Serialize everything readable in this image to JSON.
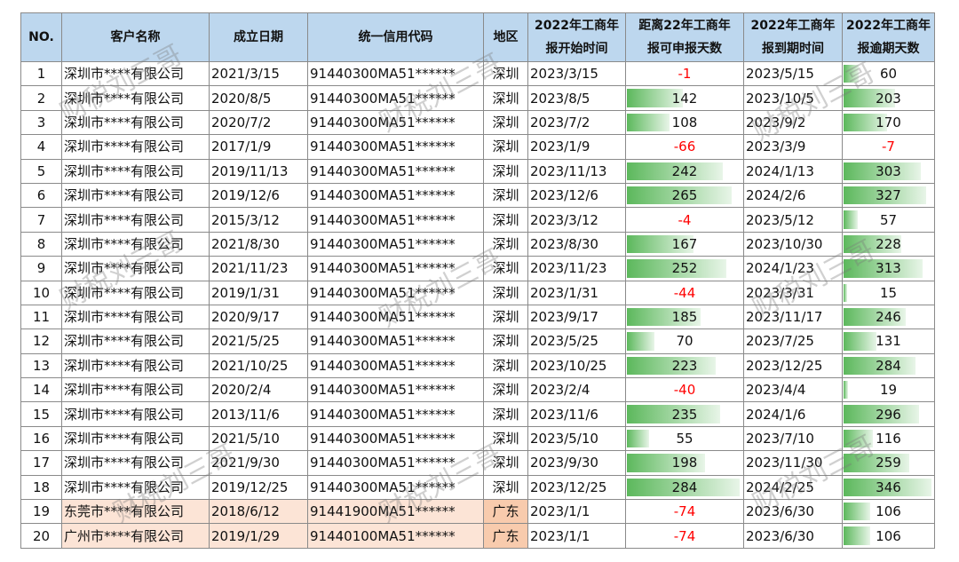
{
  "headers": {
    "no": "NO.",
    "name": "客户名称",
    "date": "成立日期",
    "code": "统一信用代码",
    "region": "地区",
    "start_l1": "2022年工商年",
    "start_l2": "报开始时间",
    "days_l1": "距离22年工商年",
    "days_l2": "报可申报天数",
    "end_l1": "2022年工商年",
    "end_l2": "报到期时间",
    "over_l1": "2022年工商年",
    "over_l2": "报逾期天数"
  },
  "rows": [
    {
      "no": "1",
      "name": "深圳市****有限公司",
      "date": "2021/3/15",
      "code": "91440300MA51******",
      "region": "深圳",
      "start": "2023/3/15",
      "days": -1,
      "end": "2023/5/15",
      "over": 60
    },
    {
      "no": "2",
      "name": "深圳市****有限公司",
      "date": "2020/8/5",
      "code": "91440300MA51******",
      "region": "深圳",
      "start": "2023/8/5",
      "days": 142,
      "end": "2023/10/5",
      "over": 203
    },
    {
      "no": "3",
      "name": "深圳市****有限公司",
      "date": "2020/7/2",
      "code": "91440300MA51******",
      "region": "深圳",
      "start": "2023/7/2",
      "days": 108,
      "end": "2023/9/2",
      "over": 170
    },
    {
      "no": "4",
      "name": "深圳市****有限公司",
      "date": "2017/1/9",
      "code": "91440300MA51******",
      "region": "深圳",
      "start": "2023/1/9",
      "days": -66,
      "end": "2023/3/9",
      "over": -7
    },
    {
      "no": "5",
      "name": "深圳市****有限公司",
      "date": "2019/11/13",
      "code": "91440300MA51******",
      "region": "深圳",
      "start": "2023/11/13",
      "days": 242,
      "end": "2024/1/13",
      "over": 303
    },
    {
      "no": "6",
      "name": "深圳市****有限公司",
      "date": "2019/12/6",
      "code": "91440300MA51******",
      "region": "深圳",
      "start": "2023/12/6",
      "days": 265,
      "end": "2024/2/6",
      "over": 327
    },
    {
      "no": "7",
      "name": "深圳市****有限公司",
      "date": "2015/3/12",
      "code": "91440300MA51******",
      "region": "深圳",
      "start": "2023/3/12",
      "days": -4,
      "end": "2023/5/12",
      "over": 57
    },
    {
      "no": "8",
      "name": "深圳市****有限公司",
      "date": "2021/8/30",
      "code": "91440300MA51******",
      "region": "深圳",
      "start": "2023/8/30",
      "days": 167,
      "end": "2023/10/30",
      "over": 228
    },
    {
      "no": "9",
      "name": "深圳市****有限公司",
      "date": "2021/11/23",
      "code": "91440300MA51******",
      "region": "深圳",
      "start": "2023/11/23",
      "days": 252,
      "end": "2024/1/23",
      "over": 313
    },
    {
      "no": "10",
      "name": "深圳市****有限公司",
      "date": "2019/1/31",
      "code": "91440300MA51******",
      "region": "深圳",
      "start": "2023/1/31",
      "days": -44,
      "end": "2023/3/31",
      "over": 15
    },
    {
      "no": "11",
      "name": "深圳市****有限公司",
      "date": "2020/9/17",
      "code": "91440300MA51******",
      "region": "深圳",
      "start": "2023/9/17",
      "days": 185,
      "end": "2023/11/17",
      "over": 246
    },
    {
      "no": "12",
      "name": "深圳市****有限公司",
      "date": "2021/5/25",
      "code": "91440300MA51******",
      "region": "深圳",
      "start": "2023/5/25",
      "days": 70,
      "end": "2023/7/25",
      "over": 131
    },
    {
      "no": "13",
      "name": "深圳市****有限公司",
      "date": "2021/10/25",
      "code": "91440300MA51******",
      "region": "深圳",
      "start": "2023/10/25",
      "days": 223,
      "end": "2023/12/25",
      "over": 284
    },
    {
      "no": "14",
      "name": "深圳市****有限公司",
      "date": "2020/2/4",
      "code": "91440300MA51******",
      "region": "深圳",
      "start": "2023/2/4",
      "days": -40,
      "end": "2023/4/4",
      "over": 19
    },
    {
      "no": "15",
      "name": "深圳市****有限公司",
      "date": "2013/11/6",
      "code": "91440300MA51******",
      "region": "深圳",
      "start": "2023/11/6",
      "days": 235,
      "end": "2024/1/6",
      "over": 296
    },
    {
      "no": "16",
      "name": "深圳市****有限公司",
      "date": "2021/5/10",
      "code": "91440300MA51******",
      "region": "深圳",
      "start": "2023/5/10",
      "days": 55,
      "end": "2023/7/10",
      "over": 116
    },
    {
      "no": "17",
      "name": "深圳市****有限公司",
      "date": "2021/9/30",
      "code": "91440300MA51******",
      "region": "深圳",
      "start": "2023/9/30",
      "days": 198,
      "end": "2023/11/30",
      "over": 259
    },
    {
      "no": "18",
      "name": "深圳市****有限公司",
      "date": "2019/12/25",
      "code": "91440300MA51******",
      "region": "深圳",
      "start": "2023/12/25",
      "days": 284,
      "end": "2024/2/25",
      "over": 346
    },
    {
      "no": "19",
      "name": "东莞市****有限公司",
      "date": "2018/6/12",
      "code": "91441900MA51******",
      "region": "广东",
      "start": "2023/1/1",
      "days": -74,
      "end": "2023/6/30",
      "over": 106,
      "highlight": true
    },
    {
      "no": "20",
      "name": "广州市****有限公司",
      "date": "2019/1/29",
      "code": "91440100MA51******",
      "region": "广东",
      "start": "2023/1/1",
      "days": -74,
      "end": "2023/6/30",
      "over": 106,
      "highlight": true
    }
  ],
  "watermark": "财税刘三哥",
  "colors": {
    "header_bg": "#bdd7ee",
    "bar_green": "#5cb85c",
    "negative": "#ff0000",
    "highlight_row": "#fce4d6",
    "highlight_region": "#f8cbad"
  }
}
